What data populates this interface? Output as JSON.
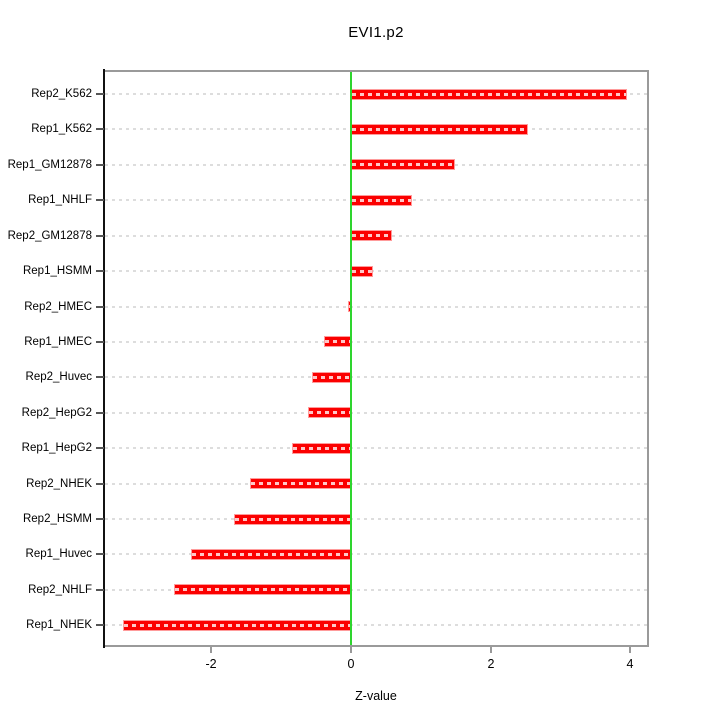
{
  "chart_data": {
    "type": "bar",
    "orientation": "horizontal",
    "title": "EVI1.p2",
    "xlabel": "Z-value",
    "categories": [
      "Rep2_K562",
      "Rep1_K562",
      "Rep1_GM12878",
      "Rep1_NHLF",
      "Rep2_GM12878",
      "Rep1_HSMM",
      "Rep2_HMEC",
      "Rep1_HMEC",
      "Rep2_Huvec",
      "Rep2_HepG2",
      "Rep1_HepG2",
      "Rep2_NHEK",
      "Rep2_HSMM",
      "Rep1_Huvec",
      "Rep2_NHLF",
      "Rep1_NHEK"
    ],
    "values": [
      3.96,
      2.54,
      1.49,
      0.88,
      0.59,
      0.32,
      -0.05,
      -0.39,
      -0.56,
      -0.62,
      -0.85,
      -1.44,
      -1.67,
      -2.29,
      -2.54,
      -3.26
    ],
    "x_ticks": [
      "-2",
      "0",
      "2",
      "4"
    ],
    "x_tick_values": [
      -2,
      0,
      2,
      4
    ],
    "xlim": [
      -3.54,
      4.26
    ],
    "legend": "none",
    "grid": "horizontal-dashed",
    "colors": {
      "bar_fill": "#fb0000",
      "bar_edge": "#ff9b9b",
      "zero_line": "#2ed52e",
      "grid_line": "#dddddd",
      "box_border": "#9a9a9a",
      "axis_line": "#111111",
      "text": "#000000"
    }
  }
}
